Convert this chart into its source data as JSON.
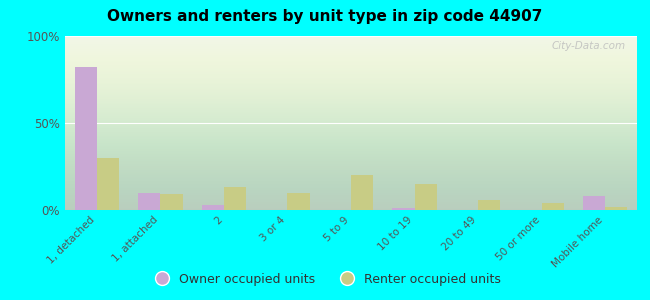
{
  "title": "Owners and renters by unit type in zip code 44907",
  "categories": [
    "1, detached",
    "1, attached",
    "2",
    "3 or 4",
    "5 to 9",
    "10 to 19",
    "20 to 49",
    "50 or more",
    "Mobile home"
  ],
  "owner_values": [
    82,
    10,
    3,
    0,
    0,
    1,
    0,
    0,
    8
  ],
  "renter_values": [
    30,
    9,
    13,
    10,
    20,
    15,
    6,
    4,
    2
  ],
  "owner_color": "#c9a8d4",
  "renter_color": "#c8cc85",
  "outer_bg": "#00ffff",
  "ylim": [
    0,
    100
  ],
  "yticks": [
    0,
    50,
    100
  ],
  "ytick_labels": [
    "0%",
    "50%",
    "100%"
  ],
  "bar_width": 0.35,
  "legend_owner": "Owner occupied units",
  "legend_renter": "Renter occupied units",
  "watermark": "City-Data.com"
}
